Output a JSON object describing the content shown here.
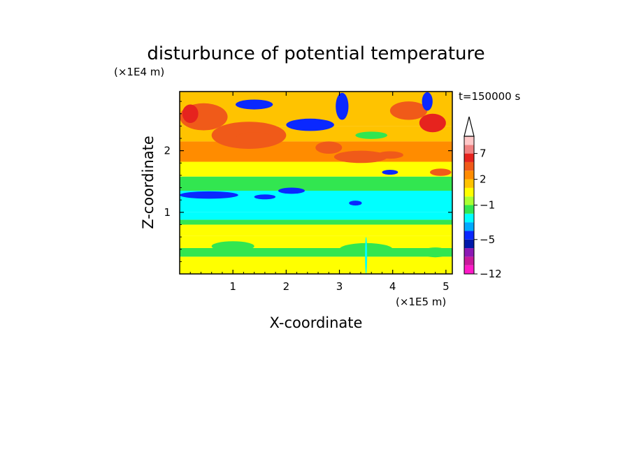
{
  "chart_data": {
    "type": "heatmap",
    "title": "disturbunce of potential temperature",
    "xlabel": "X-coordinate",
    "ylabel": "Z-coordinate",
    "x_unit": "(×1E5 m)",
    "y_unit": "(×1E4 m)",
    "annotation": "t=150000 s",
    "xlim": [
      0,
      5.12
    ],
    "ylim": [
      0,
      2.96
    ],
    "x_ticks": [
      1,
      2,
      3,
      4,
      5
    ],
    "y_ticks": [
      1,
      2
    ],
    "grid": false,
    "legend": "colorbar-right",
    "colorbar": {
      "labels": [
        "7",
        "2",
        "−1",
        "−5",
        "−12"
      ],
      "label_levels": [
        7,
        2,
        -1,
        -5,
        -12
      ],
      "levels": [
        -12,
        -10,
        -8,
        -6,
        -5,
        -4,
        -3,
        -2,
        -1,
        0,
        1,
        2,
        3,
        5,
        7,
        9,
        11
      ],
      "colors": [
        "#ff19c8",
        "#c8199b",
        "#8c19b4",
        "#0019aa",
        "#0a28ff",
        "#00aaff",
        "#00ffff",
        "#32e650",
        "#aaff32",
        "#ffff00",
        "#ffc300",
        "#ff8c00",
        "#f05a19",
        "#e6231e",
        "#f08282",
        "#ffc8c8"
      ],
      "extend": "max-arrow"
    },
    "bands": [
      {
        "z": [
          0.0,
          0.28
        ],
        "level": 0.6
      },
      {
        "z": [
          0.28,
          0.42
        ],
        "level": -1.5
      },
      {
        "z": [
          0.42,
          0.62
        ],
        "level": 0.3
      },
      {
        "z": [
          0.62,
          0.8
        ],
        "level": 0.8
      },
      {
        "z": [
          0.8,
          0.88
        ],
        "level": -1.5
      },
      {
        "z": [
          0.88,
          1.0
        ],
        "level": -2.5
      },
      {
        "z": [
          1.0,
          1.35
        ],
        "level": -2.5
      },
      {
        "z": [
          1.35,
          1.58
        ],
        "level": -1.5
      },
      {
        "z": [
          1.58,
          1.82
        ],
        "level": 0.5
      },
      {
        "z": [
          1.82,
          2.15
        ],
        "level": 2.0
      },
      {
        "z": [
          2.15,
          2.4
        ],
        "level": 1.5
      },
      {
        "z": [
          2.4,
          2.96
        ],
        "level": 1.0
      }
    ],
    "features": [
      {
        "x": 0.55,
        "z": 1.28,
        "rx": 0.55,
        "rz": 0.06,
        "level": -4.5
      },
      {
        "x": 1.6,
        "z": 1.25,
        "rx": 0.2,
        "rz": 0.04,
        "level": -4.5
      },
      {
        "x": 2.1,
        "z": 1.35,
        "rx": 0.25,
        "rz": 0.05,
        "level": -4.5
      },
      {
        "x": 0.4,
        "z": 1.45,
        "rx": 0.3,
        "rz": 0.05,
        "level": -1.5
      },
      {
        "x": 0.45,
        "z": 2.55,
        "rx": 0.45,
        "rz": 0.22,
        "level": 4.0
      },
      {
        "x": 0.2,
        "z": 2.6,
        "rx": 0.15,
        "rz": 0.15,
        "level": 6.0
      },
      {
        "x": 1.3,
        "z": 2.25,
        "rx": 0.7,
        "rz": 0.22,
        "level": 3.0
      },
      {
        "x": 1.4,
        "z": 2.2,
        "rx": 0.35,
        "rz": 0.1,
        "level": 4.0
      },
      {
        "x": 1.4,
        "z": 2.75,
        "rx": 0.35,
        "rz": 0.08,
        "level": -4.5
      },
      {
        "x": 2.45,
        "z": 2.42,
        "rx": 0.45,
        "rz": 0.1,
        "level": -4.5
      },
      {
        "x": 3.05,
        "z": 2.72,
        "rx": 0.12,
        "rz": 0.22,
        "level": -4.5
      },
      {
        "x": 2.8,
        "z": 2.05,
        "rx": 0.25,
        "rz": 0.1,
        "level": 3.0
      },
      {
        "x": 3.4,
        "z": 1.9,
        "rx": 0.5,
        "rz": 0.1,
        "level": 3.0
      },
      {
        "x": 3.6,
        "z": 2.25,
        "rx": 0.3,
        "rz": 0.06,
        "level": -1.5
      },
      {
        "x": 3.95,
        "z": 1.93,
        "rx": 0.25,
        "rz": 0.06,
        "level": 4.0
      },
      {
        "x": 3.95,
        "z": 1.65,
        "rx": 0.15,
        "rz": 0.04,
        "level": -4.5
      },
      {
        "x": 4.3,
        "z": 2.65,
        "rx": 0.35,
        "rz": 0.15,
        "level": 3.0
      },
      {
        "x": 4.75,
        "z": 2.45,
        "rx": 0.25,
        "rz": 0.15,
        "level": 5.0
      },
      {
        "x": 4.65,
        "z": 2.8,
        "rx": 0.1,
        "rz": 0.15,
        "level": -4.5
      },
      {
        "x": 4.9,
        "z": 1.65,
        "rx": 0.2,
        "rz": 0.06,
        "level": 3.0
      },
      {
        "x": 3.3,
        "z": 1.15,
        "rx": 0.12,
        "rz": 0.04,
        "level": -4.5
      },
      {
        "x": 1.0,
        "z": 0.45,
        "rx": 0.4,
        "rz": 0.08,
        "level": -1.5
      },
      {
        "x": 3.5,
        "z": 0.4,
        "rx": 0.5,
        "rz": 0.1,
        "level": -1.5
      },
      {
        "x": 4.8,
        "z": 0.35,
        "rx": 0.25,
        "rz": 0.08,
        "level": -1.5
      },
      {
        "x": 3.5,
        "z": 0.3,
        "rx": 0.02,
        "rz": 0.3,
        "level": -2.5
      }
    ]
  }
}
